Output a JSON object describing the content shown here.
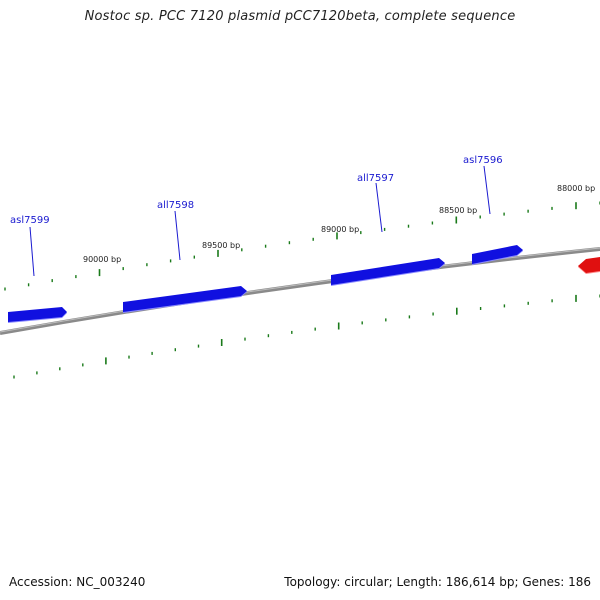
{
  "title": "Nostoc sp. PCC 7120 plasmid pCC7120beta, complete sequence",
  "footer": {
    "accession": "Accession: NC_003240",
    "summary": "Topology: circular; Length: 186,614 bp; Genes: 186"
  },
  "colors": {
    "forward_gene": "#1010e0",
    "reverse_gene": "#e01010",
    "backbone": "#777777",
    "tick": "#1a7a1a",
    "gene_label": "#1a1ad0"
  },
  "genes": [
    {
      "name": "asl7599",
      "strand": "forward"
    },
    {
      "name": "all7598",
      "strand": "forward"
    },
    {
      "name": "all7597",
      "strand": "forward"
    },
    {
      "name": "asl7596",
      "strand": "forward"
    },
    {
      "name": "",
      "strand": "reverse"
    }
  ],
  "scale_labels": [
    "88000 bp",
    "88500 bp",
    "89000 bp",
    "89500 bp",
    "90000 bp"
  ]
}
